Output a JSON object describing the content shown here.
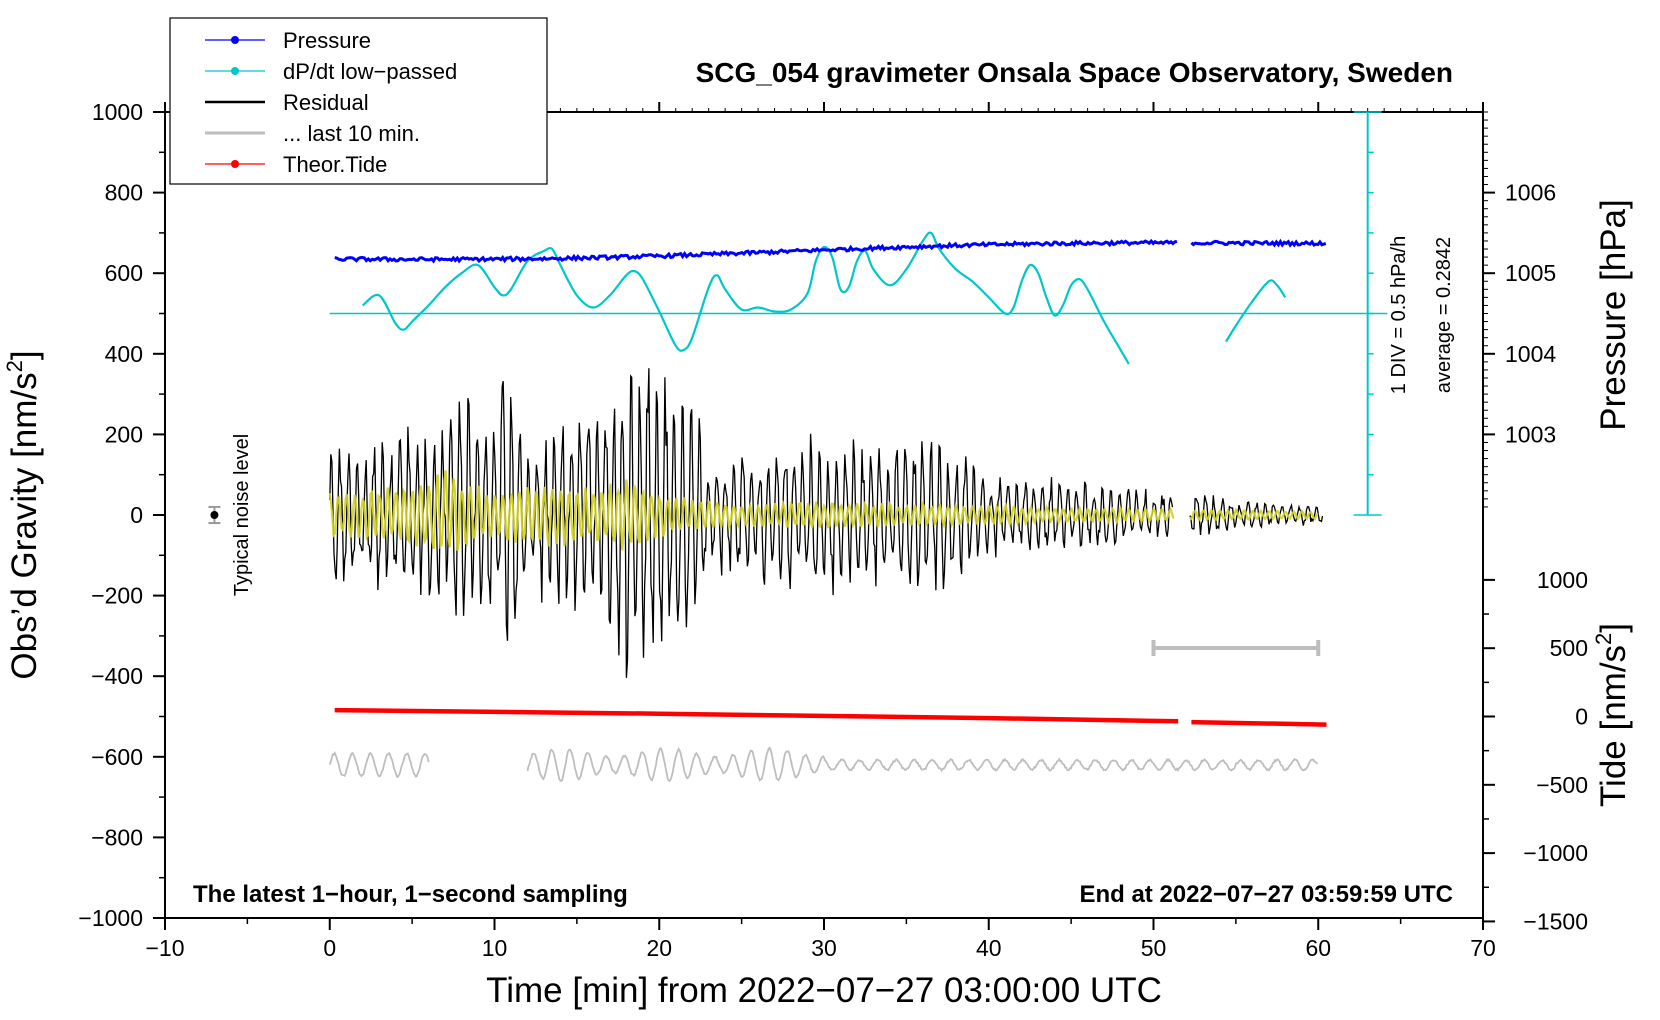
{
  "chart_data": {
    "type": "line",
    "title": "SCG_054 gravimeter Onsala Space Observatory, Sweden",
    "xlabel": "Time [min] from 2022−07−27 03:00:00 UTC",
    "ylabel_left": "Obs’d Gravity [nm/s²]",
    "ylabel_left_parts": {
      "main": "Obs’d Gravity [nm/s",
      "sup": "2",
      "tail": "]"
    },
    "ylabel_right_top": "Pressure [hPa]",
    "ylabel_right_bottom_parts": {
      "main": "Tide [nm/s",
      "sup": "2",
      "tail": "]"
    },
    "xlim": [
      -10,
      70
    ],
    "ylim": [
      -1000,
      1000
    ],
    "xticks": [
      "−10",
      "0",
      "10",
      "20",
      "30",
      "40",
      "50",
      "60",
      "70"
    ],
    "xtick_values": [
      -10,
      0,
      10,
      20,
      30,
      40,
      50,
      60,
      70
    ],
    "yticks_left": [
      "1000",
      "800",
      "600",
      "400",
      "200",
      "0",
      "−200",
      "−400",
      "−600",
      "−800",
      "−1000"
    ],
    "ytick_values_left": [
      1000,
      800,
      600,
      400,
      200,
      0,
      -200,
      -400,
      -600,
      -800,
      -1000
    ],
    "pressure_axis": {
      "ticks": [
        "1006",
        "1005",
        "1004",
        "1003"
      ],
      "tick_values": [
        1006,
        1005,
        1004,
        1003
      ],
      "gravity_at_1006": 800,
      "nm_per_hpa": 200
    },
    "tide_axis": {
      "ticks": [
        "1000",
        "500",
        "0",
        "−500",
        "−1000",
        "−1500"
      ],
      "tick_values": [
        1000,
        500,
        0,
        -500,
        -1000,
        -1500
      ],
      "gravity_at_0": -500,
      "gravity_per_unit": 0.339
    },
    "legend": {
      "location": "top-left",
      "entries": [
        {
          "label": "Pressure",
          "color": "#0000ff",
          "marker": true
        },
        {
          "label": "dP/dt low−passed",
          "color": "#00c8c8",
          "marker": true
        },
        {
          "label": "Residual",
          "color": "#000000",
          "marker": false
        },
        {
          "label": "... last 10 min.",
          "color": "#bebebe",
          "marker": false
        },
        {
          "label": "Theor.Tide",
          "color": "#ff0000",
          "marker": true
        }
      ]
    },
    "annotations": {
      "noise_label": "Typical noise level",
      "noise_point": {
        "x": -7,
        "y": 0,
        "err": 20
      },
      "div_label": "1 DIV = 0.5 hPa/h",
      "average_label": "average = 0.2842",
      "bottom_left_note": "The latest 1−hour, 1−second sampling",
      "bottom_right_note": "End at 2022−07−27 03:59:59 UTC",
      "last10_bar": {
        "x_start": 50,
        "x_end": 60,
        "y": -330
      },
      "div_scale": {
        "x": 63,
        "y_top": 1000,
        "y_bottom": 0,
        "divisions": 10
      }
    },
    "series": [
      {
        "name": "Pressure",
        "color": "#0000ff",
        "x_range": [
          0.3,
          60.5
        ],
        "gap": [
          51.5,
          52.3
        ],
        "description_values": {
          "start_hpa": 1005.18,
          "end_hpa": 1005.35
        }
      },
      {
        "name": "dP/dt low−passed",
        "color": "#00c8c8",
        "baseline": 500,
        "points": [
          [
            2,
            520
          ],
          [
            3,
            545
          ],
          [
            4,
            475
          ],
          [
            4.5,
            460
          ],
          [
            5,
            480
          ],
          [
            6,
            520
          ],
          [
            7,
            565
          ],
          [
            8,
            600
          ],
          [
            9,
            620
          ],
          [
            10,
            565
          ],
          [
            10.5,
            545
          ],
          [
            11,
            560
          ],
          [
            12,
            630
          ],
          [
            13,
            655
          ],
          [
            13.5,
            660
          ],
          [
            14,
            620
          ],
          [
            15,
            545
          ],
          [
            16,
            515
          ],
          [
            17,
            545
          ],
          [
            18,
            595
          ],
          [
            18.5,
            605
          ],
          [
            19,
            585
          ],
          [
            20,
            505
          ],
          [
            21,
            420
          ],
          [
            21.5,
            410
          ],
          [
            22,
            440
          ],
          [
            23,
            565
          ],
          [
            23.5,
            595
          ],
          [
            24,
            560
          ],
          [
            25,
            510
          ],
          [
            26,
            515
          ],
          [
            27,
            505
          ],
          [
            28,
            510
          ],
          [
            29,
            550
          ],
          [
            29.5,
            630
          ],
          [
            30,
            665
          ],
          [
            30.5,
            640
          ],
          [
            31,
            560
          ],
          [
            31.5,
            565
          ],
          [
            32,
            630
          ],
          [
            32.5,
            655
          ],
          [
            33,
            610
          ],
          [
            34,
            570
          ],
          [
            35,
            610
          ],
          [
            36,
            680
          ],
          [
            36.5,
            700
          ],
          [
            37,
            660
          ],
          [
            38,
            610
          ],
          [
            39,
            580
          ],
          [
            40,
            540
          ],
          [
            41,
            500
          ],
          [
            41.5,
            515
          ],
          [
            42,
            580
          ],
          [
            42.5,
            620
          ],
          [
            43,
            600
          ],
          [
            43.5,
            540
          ],
          [
            44,
            495
          ],
          [
            44.5,
            520
          ],
          [
            45,
            570
          ],
          [
            45.5,
            585
          ],
          [
            46,
            560
          ],
          [
            47,
            480
          ],
          [
            48,
            410
          ],
          [
            48.5,
            375
          ]
        ],
        "points_b": [
          [
            54.4,
            430
          ],
          [
            55,
            470
          ],
          [
            56,
            530
          ],
          [
            57,
            580
          ],
          [
            57.5,
            570
          ],
          [
            58,
            540
          ]
        ]
      },
      {
        "name": "Residual",
        "color": "#000000",
        "x_range": [
          0,
          60.5
        ],
        "gap": [
          51.2,
          52.2
        ],
        "envelope": [
          [
            0,
            190
          ],
          [
            2,
            150
          ],
          [
            3,
            220
          ],
          [
            5,
            230
          ],
          [
            7,
            270
          ],
          [
            8,
            340
          ],
          [
            10,
            250
          ],
          [
            10.5,
            390
          ],
          [
            12,
            200
          ],
          [
            14,
            270
          ],
          [
            16,
            280
          ],
          [
            18,
            430
          ],
          [
            19,
            380
          ],
          [
            21,
            350
          ],
          [
            22,
            330
          ],
          [
            23,
            150
          ],
          [
            25,
            180
          ],
          [
            27,
            190
          ],
          [
            30,
            210
          ],
          [
            33,
            190
          ],
          [
            35,
            200
          ],
          [
            38,
            190
          ],
          [
            40,
            120
          ],
          [
            42,
            110
          ],
          [
            45,
            90
          ],
          [
            48,
            80
          ],
          [
            51,
            60
          ],
          [
            52.5,
            60
          ],
          [
            55,
            40
          ],
          [
            58,
            30
          ],
          [
            60,
            25
          ]
        ]
      },
      {
        "name": "yellow overlay",
        "color": "#d0d020",
        "envelope": [
          [
            0,
            60
          ],
          [
            2,
            60
          ],
          [
            4,
            80
          ],
          [
            7,
            120
          ],
          [
            10,
            60
          ],
          [
            12,
            80
          ],
          [
            14,
            90
          ],
          [
            16,
            70
          ],
          [
            18,
            100
          ],
          [
            20,
            60
          ],
          [
            22,
            40
          ],
          [
            25,
            30
          ],
          [
            30,
            35
          ],
          [
            35,
            30
          ],
          [
            40,
            25
          ],
          [
            45,
            20
          ],
          [
            51,
            15
          ],
          [
            53,
            15
          ],
          [
            60,
            10
          ]
        ]
      },
      {
        "name": "... last 10 min.",
        "color": "#bebebe",
        "baseline": -620,
        "segments": [
          [
            0,
            6
          ],
          [
            12,
            60
          ]
        ]
      },
      {
        "name": "Theor.Tide",
        "color": "#ff0000",
        "points": [
          [
            0.3,
            -484
          ],
          [
            20,
            -493
          ],
          [
            40,
            -504
          ],
          [
            51.5,
            -512
          ],
          [
            52.3,
            -514
          ],
          [
            60.5,
            -520
          ]
        ],
        "gap": [
          51.5,
          52.3
        ]
      }
    ]
  }
}
